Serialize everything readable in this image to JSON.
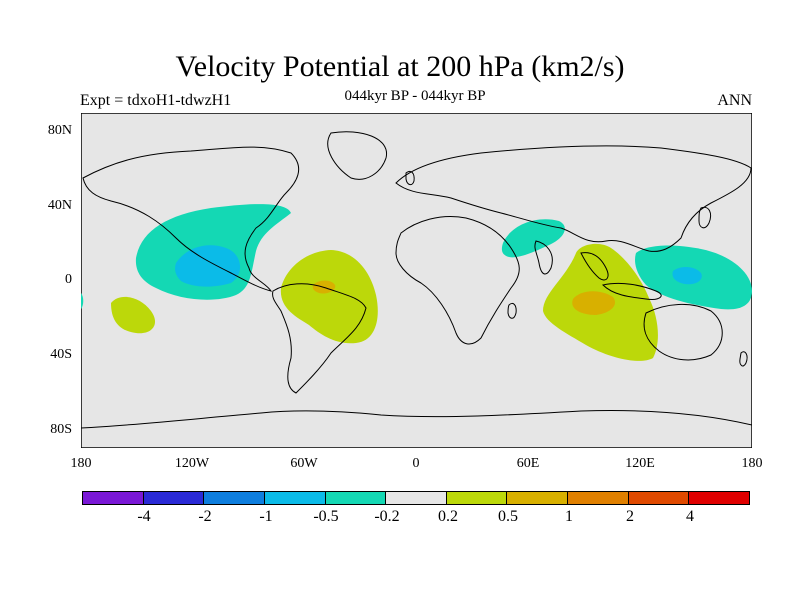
{
  "figure": {
    "title": "Velocity Potential at 200 hPa (km2/s)",
    "subtitle": "044kyr BP - 044kyr BP",
    "left_label": "Expt = tdxoH1-tdwzH1",
    "right_label": "ANN"
  },
  "map": {
    "background_color": "#e6e6e6",
    "lat_labels": [
      "80N",
      "40N",
      "0",
      "40S",
      "80S"
    ],
    "lon_labels": [
      "180",
      "120W",
      "60W",
      "0",
      "60E",
      "120E",
      "180"
    ]
  },
  "colorbar": {
    "colors": [
      "#7a18d6",
      "#2a2ad6",
      "#0e7ede",
      "#0bbbe8",
      "#14d8b4",
      "#e6e6e6",
      "#bcd80a",
      "#d8b000",
      "#e08000",
      "#e04a00",
      "#e00000"
    ],
    "labels": [
      "-4",
      "-2",
      "-1",
      "-0.5",
      "-0.2",
      "0.2",
      "0.5",
      "1",
      "2",
      "4"
    ]
  }
}
